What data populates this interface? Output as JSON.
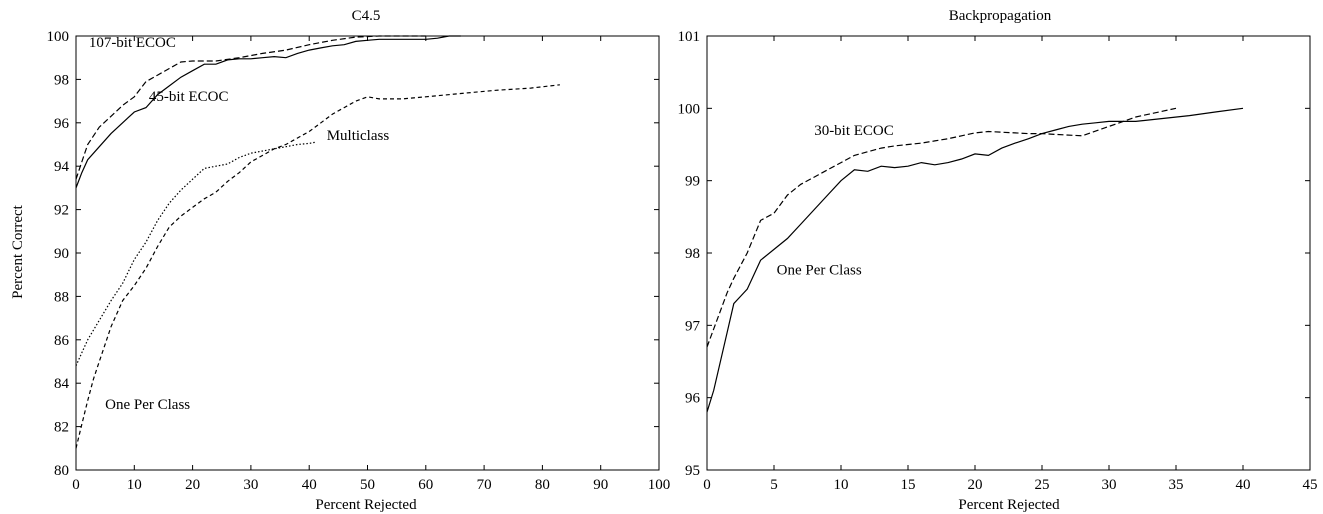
{
  "ylabel_shared": "Percent Correct",
  "chart_data": [
    {
      "type": "line",
      "title": "C4.5",
      "xlabel": "Percent Rejected",
      "ylabel": "Percent Correct",
      "xlim": [
        0,
        100
      ],
      "ylim": [
        80,
        100
      ],
      "xticks": [
        0,
        10,
        20,
        30,
        40,
        50,
        60,
        70,
        80,
        90,
        100
      ],
      "yticks": [
        80,
        82,
        84,
        86,
        88,
        90,
        92,
        94,
        96,
        98,
        100
      ],
      "grid": false,
      "legend": "none",
      "series": [
        {
          "name": "107-bit ECOC",
          "dash": "6,3",
          "x": [
            0,
            1,
            2,
            4,
            6,
            8,
            10,
            12,
            14,
            16,
            18,
            20,
            24,
            28,
            32,
            36,
            40,
            44,
            48,
            52,
            56,
            60
          ],
          "y": [
            93.4,
            94.2,
            95.0,
            95.8,
            96.3,
            96.8,
            97.2,
            97.9,
            98.2,
            98.5,
            98.8,
            98.85,
            98.85,
            99.0,
            99.2,
            99.35,
            99.6,
            99.8,
            99.95,
            100.0,
            100.0,
            100.0
          ]
        },
        {
          "name": "45-bit ECOC",
          "dash": "",
          "x": [
            0,
            1,
            2,
            4,
            6,
            8,
            10,
            12,
            14,
            16,
            18,
            20,
            22,
            24,
            26,
            28,
            30,
            32,
            34,
            36,
            38,
            40,
            42,
            44,
            46,
            48,
            50,
            52,
            54,
            56,
            58,
            60,
            62,
            64,
            66
          ],
          "y": [
            93.0,
            93.7,
            94.3,
            94.9,
            95.5,
            96.0,
            96.5,
            96.7,
            97.3,
            97.7,
            98.1,
            98.4,
            98.7,
            98.7,
            98.9,
            98.95,
            98.95,
            99.0,
            99.05,
            99.0,
            99.2,
            99.35,
            99.45,
            99.55,
            99.6,
            99.75,
            99.8,
            99.85,
            99.85,
            99.85,
            99.85,
            99.85,
            99.9,
            100.0,
            100.0
          ]
        },
        {
          "name": "Multiclass",
          "dash": "1.5,2",
          "x": [
            0,
            1,
            2,
            4,
            6,
            8,
            10,
            12,
            14,
            16,
            18,
            20,
            22,
            24,
            26,
            28,
            30,
            32,
            34,
            36,
            38,
            40,
            41
          ],
          "y": [
            84.8,
            85.4,
            86.0,
            86.9,
            87.8,
            88.6,
            89.7,
            90.5,
            91.5,
            92.3,
            92.9,
            93.4,
            93.9,
            94.0,
            94.1,
            94.4,
            94.6,
            94.7,
            94.8,
            94.9,
            95.0,
            95.05,
            95.1
          ]
        },
        {
          "name": "One Per Class",
          "dash": "4,3",
          "x": [
            0,
            1,
            2,
            3,
            4,
            5,
            6,
            7,
            8,
            10,
            12,
            14,
            16,
            18,
            20,
            22,
            24,
            26,
            28,
            30,
            32,
            34,
            36,
            38,
            40,
            42,
            44,
            46,
            48,
            50,
            52,
            56,
            60,
            66,
            72,
            78,
            83
          ],
          "y": [
            81.0,
            82.1,
            83.2,
            84.2,
            85.0,
            85.8,
            86.6,
            87.2,
            87.8,
            88.5,
            89.3,
            90.3,
            91.2,
            91.7,
            92.1,
            92.5,
            92.8,
            93.3,
            93.7,
            94.2,
            94.5,
            94.8,
            95.0,
            95.3,
            95.6,
            96.0,
            96.4,
            96.7,
            97.0,
            97.2,
            97.1,
            97.1,
            97.2,
            97.35,
            97.5,
            97.6,
            97.75
          ]
        }
      ],
      "annotations": [
        {
          "text": "107-bit ECOC",
          "x": 2.2,
          "y": 99.5
        },
        {
          "text": "45-bit ECOC",
          "x": 12.5,
          "y": 97.0
        },
        {
          "text": "Multiclass",
          "x": 43,
          "y": 95.2
        },
        {
          "text": "One Per Class",
          "x": 5,
          "y": 82.8
        }
      ]
    },
    {
      "type": "line",
      "title": "Backpropagation",
      "xlabel": "Percent Rejected",
      "ylabel": "",
      "xlim": [
        0,
        45
      ],
      "ylim": [
        95,
        101
      ],
      "xticks": [
        0,
        5,
        10,
        15,
        20,
        25,
        30,
        35,
        40,
        45
      ],
      "yticks": [
        95,
        96,
        97,
        98,
        99,
        100,
        101
      ],
      "grid": false,
      "legend": "none",
      "series": [
        {
          "name": "30-bit ECOC",
          "dash": "6,3",
          "x": [
            0,
            0.5,
            1,
            1.5,
            2,
            3,
            4,
            5,
            6,
            7,
            8,
            9,
            10,
            11,
            12,
            13,
            14,
            15,
            16,
            17,
            18,
            19,
            20,
            21,
            22,
            23,
            24,
            25,
            26,
            28,
            30,
            32,
            34,
            35
          ],
          "y": [
            96.7,
            96.95,
            97.2,
            97.45,
            97.65,
            98.0,
            98.45,
            98.55,
            98.8,
            98.95,
            99.05,
            99.15,
            99.25,
            99.35,
            99.4,
            99.45,
            99.48,
            99.5,
            99.52,
            99.55,
            99.58,
            99.62,
            99.66,
            99.68,
            99.67,
            99.66,
            99.65,
            99.65,
            99.64,
            99.62,
            99.75,
            99.88,
            99.96,
            100.0
          ]
        },
        {
          "name": "One Per Class",
          "dash": "",
          "x": [
            0,
            0.5,
            1,
            1.5,
            2,
            2.5,
            3,
            3.5,
            4,
            5,
            6,
            7,
            8,
            9,
            10,
            11,
            12,
            13,
            14,
            15,
            16,
            17,
            18,
            19,
            20,
            21,
            22,
            23,
            24,
            25,
            26,
            27,
            28,
            29,
            30,
            32,
            34,
            36,
            38,
            40
          ],
          "y": [
            95.8,
            96.1,
            96.5,
            96.9,
            97.3,
            97.4,
            97.5,
            97.7,
            97.9,
            98.05,
            98.2,
            98.4,
            98.6,
            98.8,
            99.0,
            99.15,
            99.13,
            99.2,
            99.18,
            99.2,
            99.25,
            99.22,
            99.25,
            99.3,
            99.37,
            99.35,
            99.45,
            99.52,
            99.58,
            99.65,
            99.7,
            99.75,
            99.78,
            99.8,
            99.82,
            99.82,
            99.86,
            99.9,
            99.95,
            100.0
          ]
        }
      ],
      "annotations": [
        {
          "text": "30-bit ECOC",
          "x": 8,
          "y": 99.63
        },
        {
          "text": "One Per Class",
          "x": 5.2,
          "y": 97.7
        }
      ]
    }
  ]
}
